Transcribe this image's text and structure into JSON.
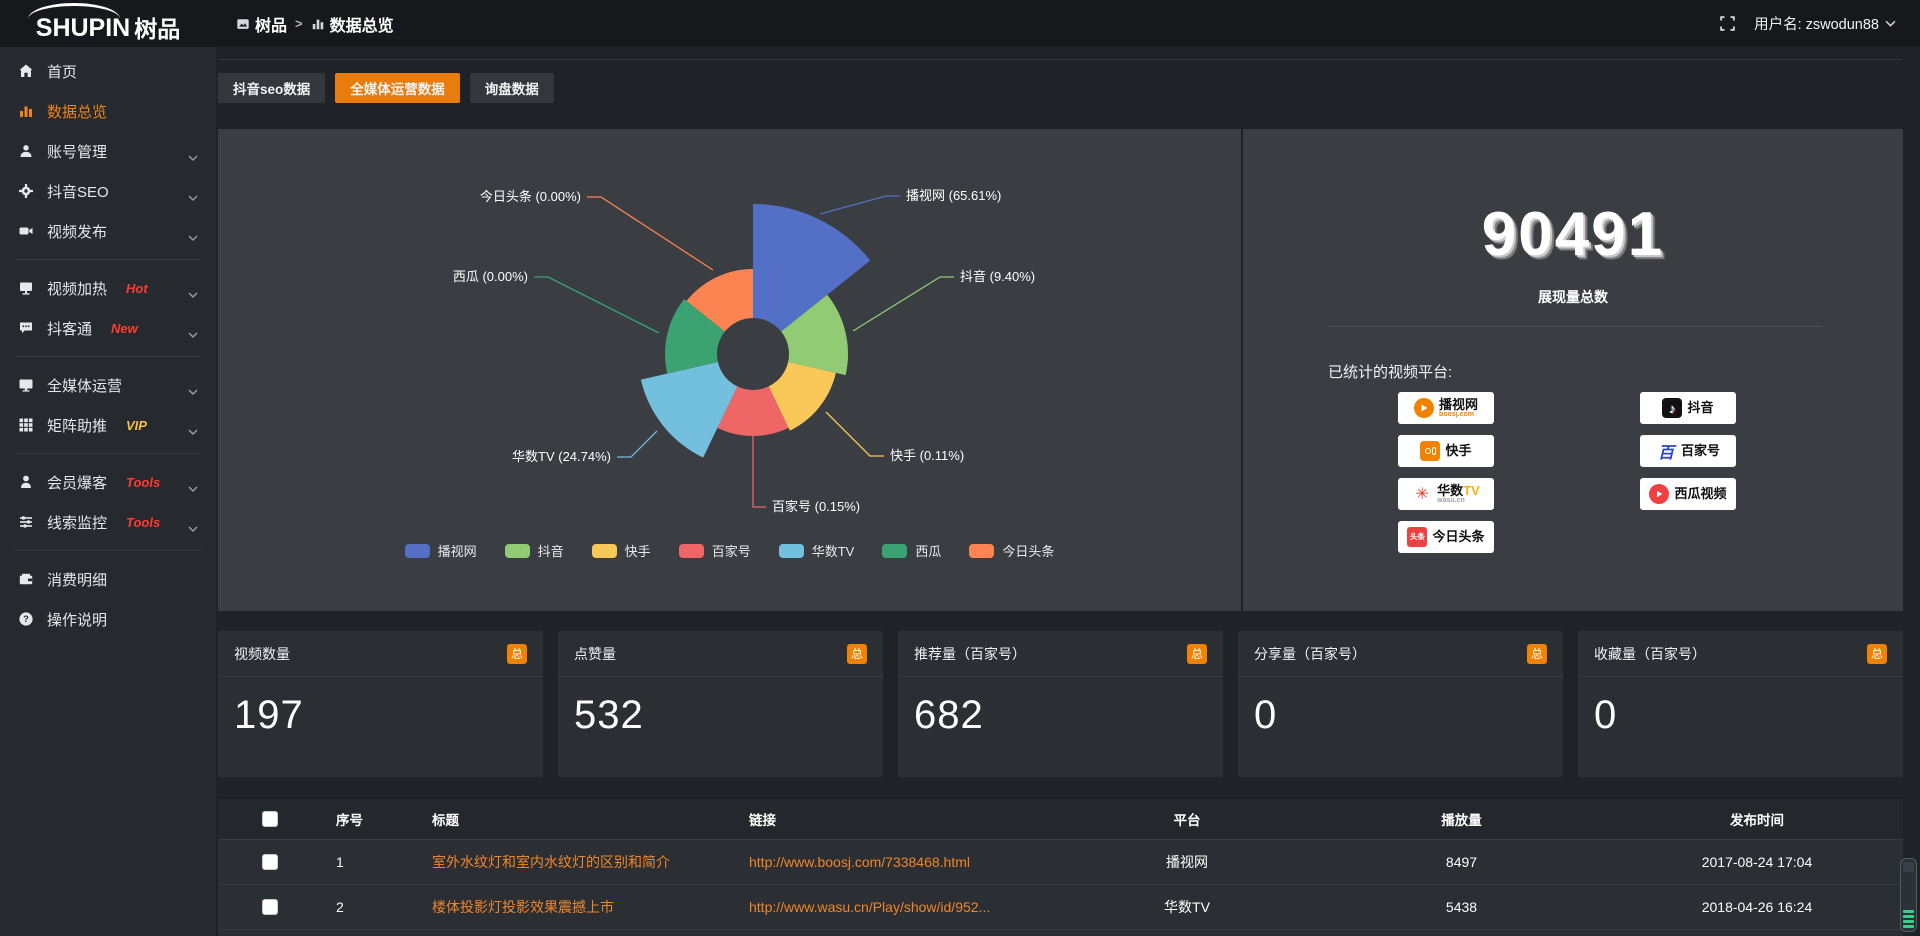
{
  "topbar": {
    "logo_text": "SHUPIN",
    "logo_cn": "树品",
    "breadcrumb_home": "树品",
    "breadcrumb_sep": ">",
    "breadcrumb_current": "数据总览",
    "username": "用户名: zswodun88"
  },
  "sidebar": {
    "items": [
      {
        "icon": "home-icon",
        "label": "首页",
        "active": false,
        "chevron": false,
        "badge": "",
        "badge_color": "",
        "divider_after": false
      },
      {
        "icon": "bar-chart-icon",
        "label": "数据总览",
        "active": true,
        "chevron": false,
        "badge": "",
        "badge_color": "",
        "divider_after": false
      },
      {
        "icon": "user-icon",
        "label": "账号管理",
        "active": false,
        "chevron": true,
        "badge": "",
        "badge_color": "",
        "divider_after": false
      },
      {
        "icon": "gear-icon",
        "label": "抖音SEO",
        "active": false,
        "chevron": true,
        "badge": "",
        "badge_color": "",
        "divider_after": false
      },
      {
        "icon": "video-camera-icon",
        "label": "视频发布",
        "active": false,
        "chevron": true,
        "badge": "",
        "badge_color": "",
        "divider_after": true
      },
      {
        "icon": "screen-icon",
        "label": "视频加热",
        "active": false,
        "chevron": true,
        "badge": "Hot",
        "badge_color": "#ff3b30",
        "divider_after": false
      },
      {
        "icon": "chat-icon",
        "label": "抖客通",
        "active": false,
        "chevron": true,
        "badge": "New",
        "badge_color": "#ff3b30",
        "divider_after": true
      },
      {
        "icon": "monitor-icon",
        "label": "全媒体运营",
        "active": false,
        "chevron": true,
        "badge": "",
        "badge_color": "",
        "divider_after": false
      },
      {
        "icon": "grid-icon",
        "label": "矩阵助推",
        "active": false,
        "chevron": true,
        "badge": "VIP",
        "badge_color": "#f5c242",
        "divider_after": true
      },
      {
        "icon": "person-icon",
        "label": "会员爆客",
        "active": false,
        "chevron": true,
        "badge": "Tools",
        "badge_color": "#ff3b30",
        "divider_after": false
      },
      {
        "icon": "sliders-icon",
        "label": "线索监控",
        "active": false,
        "chevron": true,
        "badge": "Tools",
        "badge_color": "#ff3b30",
        "divider_after": true
      },
      {
        "icon": "wallet-icon",
        "label": "消费明细",
        "active": false,
        "chevron": false,
        "badge": "",
        "badge_color": "",
        "divider_after": false
      },
      {
        "icon": "question-icon",
        "label": "操作说明",
        "active": false,
        "chevron": false,
        "badge": "",
        "badge_color": "",
        "divider_after": false
      }
    ]
  },
  "tabs": [
    {
      "label": "抖音seo数据",
      "active": false
    },
    {
      "label": "全媒体运营数据",
      "active": true
    },
    {
      "label": "询盘数据",
      "active": false
    }
  ],
  "chart_data": {
    "type": "pie",
    "variant": "nightingale-rose",
    "unit": "%",
    "legend_position": "bottom",
    "items": [
      {
        "name": "播视网",
        "value": 65.61,
        "label": "播视网 (65.61%)",
        "color": "#5470c6"
      },
      {
        "name": "抖音",
        "value": 9.4,
        "label": "抖音 (9.40%)",
        "color": "#91cc75"
      },
      {
        "name": "快手",
        "value": 0.11,
        "label": "快手 (0.11%)",
        "color": "#fac858"
      },
      {
        "name": "百家号",
        "value": 0.15,
        "label": "百家号 (0.15%)",
        "color": "#ee6666"
      },
      {
        "name": "华数TV",
        "value": 24.74,
        "label": "华数TV (24.74%)",
        "color": "#73c0de"
      },
      {
        "name": "西瓜",
        "value": 0.0,
        "label": "西瓜 (0.00%)",
        "color": "#3ba272"
      },
      {
        "name": "今日头条",
        "value": 0.0,
        "label": "今日头条 (0.00%)",
        "color": "#fc8452"
      }
    ]
  },
  "summary": {
    "total_value": "90491",
    "total_label": "展现量总数",
    "platforms_title": "已统计的视频平台:",
    "platforms": [
      {
        "icon": "boosj-logo",
        "title": "播视网",
        "sub": "boosj.com",
        "sub_color": "#f08200"
      },
      {
        "icon": "kuaishou-logo",
        "title": "快手",
        "sub": "",
        "sub_color": ""
      },
      {
        "icon": "wasu-logo",
        "title": "华数",
        "title_accent": "TV",
        "sub": "wasu.cn",
        "sub_color": "#9aa0a6"
      },
      {
        "icon": "toutiao-logo",
        "title": "今日头条",
        "sub": "",
        "sub_color": ""
      },
      {
        "icon": "douyin-logo",
        "title": "抖音",
        "sub": "",
        "sub_color": ""
      },
      {
        "icon": "baijiahao-logo",
        "title": "百家号",
        "sub": "",
        "sub_color": ""
      },
      {
        "icon": "xigua-logo",
        "title": "西瓜视频",
        "sub": "",
        "sub_color": ""
      }
    ]
  },
  "stat_cards": [
    {
      "label": "视频数量",
      "badge": "总",
      "value": "197"
    },
    {
      "label": "点赞量",
      "badge": "总",
      "value": "532"
    },
    {
      "label": "推荐量（百家号）",
      "badge": "总",
      "value": "682"
    },
    {
      "label": "分享量（百家号）",
      "badge": "总",
      "value": "0"
    },
    {
      "label": "收藏量（百家号）",
      "badge": "总",
      "value": "0"
    }
  ],
  "table": {
    "headers": [
      "序号",
      "标题",
      "链接",
      "平台",
      "播放量",
      "发布时间"
    ],
    "rows": [
      {
        "num": "1",
        "title": "室外水纹灯和室内水纹灯的区别和简介",
        "link": "http://www.boosj.com/7338468.html",
        "platform": "播视网",
        "plays": "8497",
        "time": "2017-08-24 17:04"
      },
      {
        "num": "2",
        "title": "楼体投影灯投影效果震撼上市",
        "link": "http://www.wasu.cn/Play/show/id/952...",
        "platform": "华数TV",
        "plays": "5438",
        "time": "2018-04-26 16:24"
      }
    ]
  }
}
